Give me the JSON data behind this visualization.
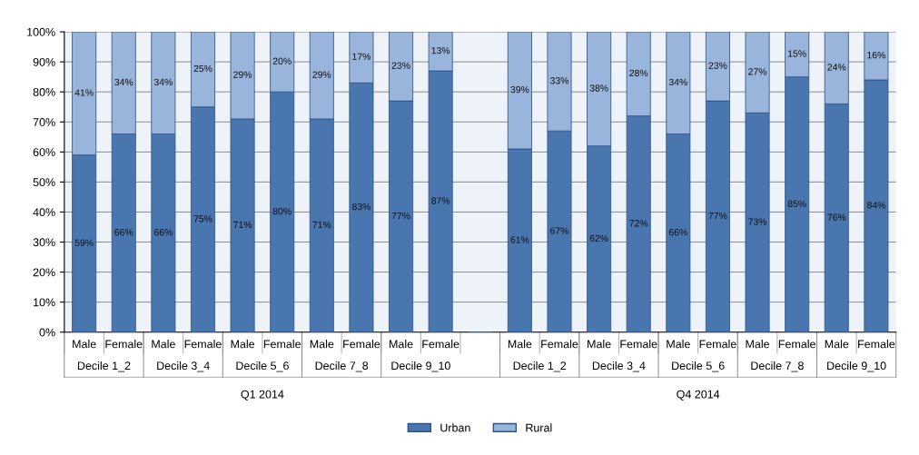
{
  "chart_data": {
    "type": "bar",
    "stacked": true,
    "categories": [
      "Male",
      "Female",
      "Male",
      "Female",
      "Male",
      "Female",
      "Male",
      "Female",
      "Male",
      "Female",
      null,
      "Male",
      "Female",
      "Male",
      "Female",
      "Male",
      "Female",
      "Male",
      "Female",
      "Male",
      "Female"
    ],
    "series": [
      {
        "name": "Urban",
        "color": "#4a76b0",
        "values": [
          59,
          66,
          66,
          75,
          71,
          80,
          71,
          83,
          77,
          87,
          null,
          61,
          67,
          62,
          72,
          66,
          77,
          73,
          85,
          76,
          84
        ],
        "value_labels": [
          "59%",
          "66%",
          "66%",
          "75%",
          "71%",
          "80%",
          "71%",
          "83%",
          "77%",
          "87%",
          null,
          "61%",
          "67%",
          "62%",
          "72%",
          "66%",
          "77%",
          "73%",
          "85%",
          "76%",
          "84%"
        ]
      },
      {
        "name": "Rural",
        "color": "#9ab5dc",
        "values": [
          41,
          34,
          34,
          25,
          29,
          20,
          29,
          17,
          23,
          13,
          null,
          39,
          33,
          38,
          28,
          34,
          23,
          27,
          15,
          24,
          16
        ],
        "value_labels": [
          "41%",
          "34%",
          "34%",
          "25%",
          "29%",
          "20%",
          "29%",
          "17%",
          "23%",
          "13%",
          null,
          "39%",
          "33%",
          "38%",
          "28%",
          "34%",
          "23%",
          "27%",
          "15%",
          "24%",
          "16%"
        ]
      }
    ],
    "ylim": [
      0,
      100
    ],
    "yticks": [
      {
        "value": 0,
        "label": "0%"
      },
      {
        "value": 10,
        "label": "10%"
      },
      {
        "value": 20,
        "label": "20%"
      },
      {
        "value": 30,
        "label": "30%"
      },
      {
        "value": 40,
        "label": "40%"
      },
      {
        "value": 50,
        "label": "50%"
      },
      {
        "value": 60,
        "label": "60%"
      },
      {
        "value": 70,
        "label": "70%"
      },
      {
        "value": 80,
        "label": "80%"
      },
      {
        "value": 90,
        "label": "90%"
      },
      {
        "value": 100,
        "label": "100%"
      }
    ],
    "grid": "y",
    "legend": "bottom",
    "annotations": [
      "Decile 1_2",
      "Decile 3_4",
      "Decile 5_6",
      "Decile 7_8",
      "Decile 9_10",
      "Decile 1_2",
      "Decile 3_4",
      "Decile 5_6",
      "Decile 7_8",
      "Decile 9_10",
      "Q1 2014",
      "Q4 2014"
    ]
  }
}
